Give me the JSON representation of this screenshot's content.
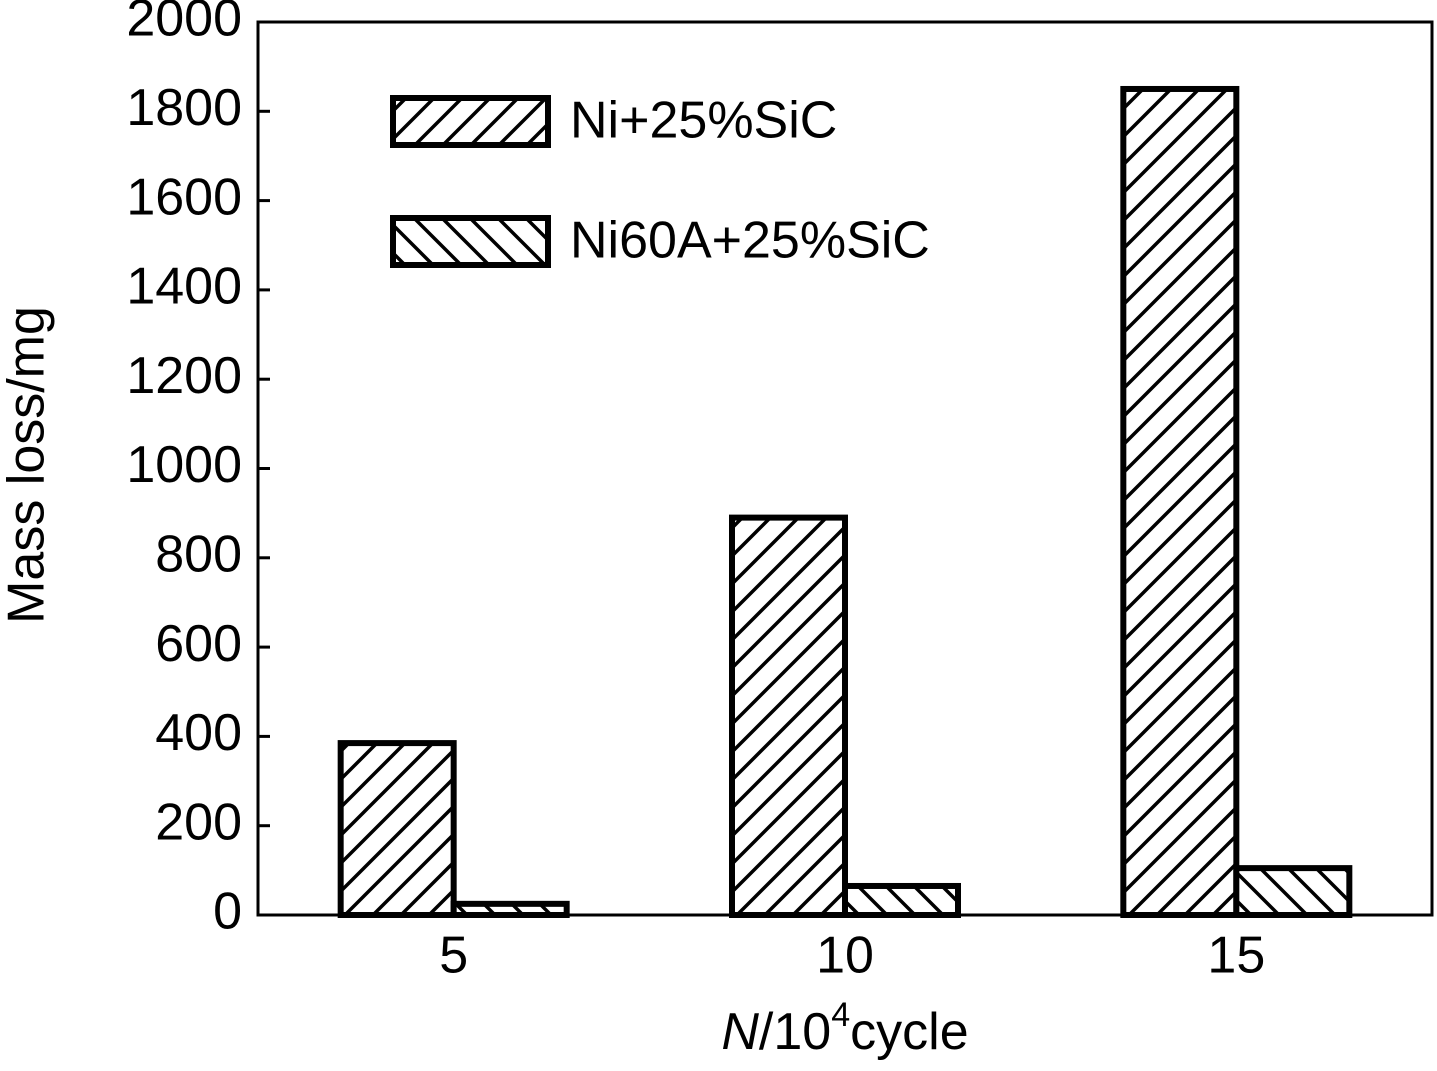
{
  "chart_data": {
    "type": "bar",
    "categories": [
      "5",
      "10",
      "15"
    ],
    "series": [
      {
        "name": "Ni+25%SiC",
        "color": "#000000",
        "hatch": "/",
        "values": [
          385,
          890,
          1850
        ]
      },
      {
        "name": "Ni60A+25%SiC",
        "color": "#000000",
        "hatch": "\\",
        "values": [
          25,
          65,
          105
        ]
      }
    ],
    "ylabel": "Mass loss/mg",
    "xlabel": [
      "N",
      "/10",
      "4",
      "cycle"
    ],
    "ylim": [
      0,
      2000
    ],
    "yticks": [
      0,
      200,
      400,
      600,
      800,
      1000,
      1200,
      1400,
      1600,
      1800,
      2000
    ],
    "grid": false
  }
}
